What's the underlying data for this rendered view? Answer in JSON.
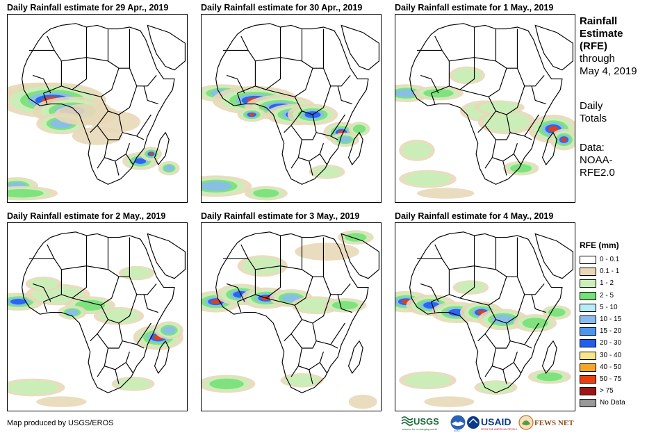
{
  "panels": [
    {
      "title": "Daily Rainfall estimate for 29 Apr., 2019",
      "rain": [
        [
          18,
          44,
          22,
          6,
          3
        ],
        [
          25,
          48,
          30,
          10,
          5
        ],
        [
          36,
          54,
          22,
          8,
          4
        ],
        [
          30,
          61,
          14,
          6,
          3
        ],
        [
          44,
          56,
          18,
          6,
          0
        ],
        [
          60,
          60,
          14,
          6,
          0
        ],
        [
          50,
          68,
          14,
          5,
          0
        ],
        [
          74,
          82,
          10,
          5,
          4
        ],
        [
          80,
          78,
          6,
          4,
          5
        ],
        [
          5,
          96,
          12,
          5,
          3
        ],
        [
          8,
          100,
          20,
          4,
          2
        ],
        [
          90,
          86,
          6,
          4,
          3
        ]
      ]
    },
    {
      "title": "Daily Rainfall estimate for 30 Apr., 2019",
      "rain": [
        [
          12,
          44,
          16,
          5,
          3
        ],
        [
          30,
          48,
          24,
          8,
          5
        ],
        [
          44,
          52,
          20,
          7,
          4
        ],
        [
          52,
          56,
          16,
          6,
          5
        ],
        [
          62,
          56,
          14,
          6,
          4
        ],
        [
          28,
          56,
          8,
          4,
          5
        ],
        [
          78,
          66,
          10,
          6,
          5
        ],
        [
          80,
          70,
          8,
          4,
          3
        ],
        [
          88,
          64,
          6,
          4,
          2
        ],
        [
          8,
          96,
          20,
          6,
          3
        ],
        [
          36,
          100,
          12,
          4,
          2
        ],
        [
          70,
          88,
          10,
          4,
          1
        ]
      ]
    },
    {
      "title": "Daily Rainfall estimate for 1 May., 2019",
      "rain": [
        [
          6,
          44,
          14,
          5,
          3
        ],
        [
          24,
          44,
          14,
          4,
          2
        ],
        [
          50,
          54,
          14,
          6,
          1
        ],
        [
          62,
          60,
          16,
          7,
          1
        ],
        [
          58,
          52,
          14,
          4,
          1
        ],
        [
          88,
          64,
          14,
          8,
          5
        ],
        [
          94,
          70,
          8,
          6,
          5
        ],
        [
          12,
          76,
          10,
          6,
          1
        ],
        [
          40,
          34,
          10,
          5,
          1
        ],
        [
          18,
          92,
          16,
          5,
          1
        ],
        [
          70,
          86,
          10,
          4,
          2
        ],
        [
          28,
          100,
          16,
          3,
          0
        ]
      ]
    },
    {
      "title": "Daily Rainfall estimate for 2 May., 2019",
      "rain": [
        [
          6,
          44,
          14,
          5,
          4
        ],
        [
          28,
          40,
          18,
          6,
          1
        ],
        [
          46,
          46,
          14,
          5,
          2
        ],
        [
          36,
          50,
          8,
          4,
          3
        ],
        [
          62,
          52,
          14,
          5,
          1
        ],
        [
          84,
          64,
          14,
          7,
          5
        ],
        [
          90,
          60,
          8,
          5,
          3
        ],
        [
          20,
          34,
          10,
          4,
          1
        ],
        [
          72,
          28,
          10,
          4,
          1
        ],
        [
          14,
          92,
          18,
          5,
          1
        ],
        [
          70,
          90,
          12,
          4,
          1
        ],
        [
          30,
          100,
          14,
          3,
          0
        ]
      ]
    },
    {
      "title": "Daily Rainfall estimate for 3 May., 2019",
      "rain": [
        [
          8,
          44,
          14,
          6,
          5
        ],
        [
          22,
          40,
          14,
          6,
          4
        ],
        [
          36,
          42,
          14,
          6,
          5
        ],
        [
          50,
          42,
          12,
          5,
          3
        ],
        [
          64,
          46,
          14,
          5,
          1
        ],
        [
          80,
          46,
          12,
          4,
          2
        ],
        [
          34,
          24,
          14,
          6,
          1
        ],
        [
          70,
          16,
          18,
          5,
          0
        ],
        [
          86,
          8,
          10,
          4,
          2
        ],
        [
          14,
          90,
          16,
          5,
          2
        ],
        [
          56,
          88,
          12,
          4,
          1
        ],
        [
          90,
          100,
          8,
          4,
          0
        ]
      ]
    },
    {
      "title": "Daily Rainfall estimate for 4 May., 2019",
      "rain": [
        [
          6,
          44,
          14,
          6,
          5
        ],
        [
          20,
          46,
          14,
          6,
          4
        ],
        [
          34,
          50,
          14,
          6,
          4
        ],
        [
          48,
          50,
          12,
          6,
          5
        ],
        [
          60,
          54,
          14,
          6,
          3
        ],
        [
          78,
          56,
          12,
          5,
          2
        ],
        [
          90,
          50,
          8,
          4,
          2
        ],
        [
          42,
          36,
          10,
          4,
          1
        ],
        [
          18,
          88,
          16,
          5,
          1
        ],
        [
          56,
          92,
          12,
          4,
          1
        ],
        [
          86,
          86,
          12,
          4,
          2
        ],
        [
          30,
          100,
          14,
          3,
          0
        ]
      ]
    }
  ],
  "side": {
    "line1": "Rainfall",
    "line2": "Estimate",
    "line3": "(RFE)",
    "line4": "through",
    "line5": "May 4, 2019",
    "line6": "Daily",
    "line7": "Totals",
    "line8": "Data:",
    "line9": "NOAA-",
    "line10": "RFE2.0"
  },
  "legend": {
    "title": "RFE (mm)",
    "items": [
      {
        "label": "0 - 0.1",
        "color": "#ffffff"
      },
      {
        "label": "0.1 - 1",
        "color": "#e8d8b8"
      },
      {
        "label": "1 - 2",
        "color": "#c8f0b8"
      },
      {
        "label": "2 - 5",
        "color": "#78e078"
      },
      {
        "label": "5 - 10",
        "color": "#b8ecf8"
      },
      {
        "label": "10 - 15",
        "color": "#88bcf0"
      },
      {
        "label": "15 - 20",
        "color": "#4896f0"
      },
      {
        "label": "20 - 30",
        "color": "#1e5ef0"
      },
      {
        "label": "30 - 40",
        "color": "#fae68a"
      },
      {
        "label": "40 - 50",
        "color": "#f5a623"
      },
      {
        "label": "50 - 75",
        "color": "#f03c0a"
      },
      {
        "label": "> 75",
        "color": "#a01414"
      },
      {
        "label": "No Data",
        "color": "#999999"
      }
    ]
  },
  "credit": "Map produced by USGS/EROS",
  "logos": {
    "usgs": "USGS",
    "usgs_tagline": "science for a changing world",
    "noaa": "NOAA",
    "usaid": "USAID",
    "usaid_tagline": "FROM THE AMERICAN PEOPLE",
    "fews": "FEWS NET"
  }
}
